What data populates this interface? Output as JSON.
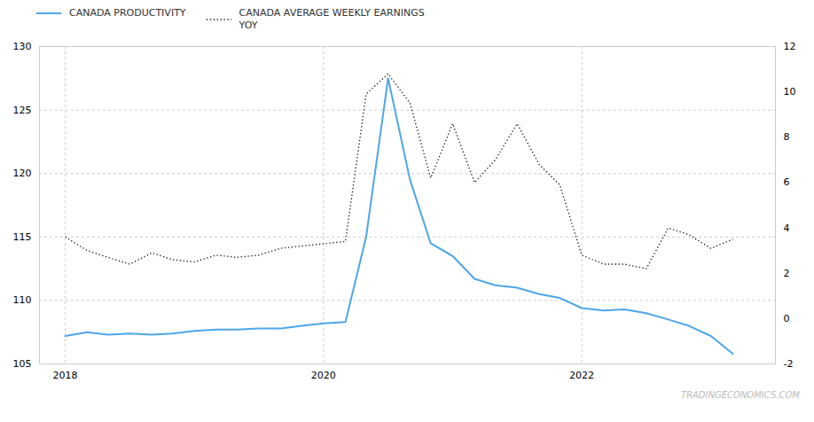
{
  "chart_data": {
    "type": "line",
    "x": [
      2018.0,
      2018.17,
      2018.33,
      2018.5,
      2018.67,
      2018.83,
      2019.0,
      2019.17,
      2019.33,
      2019.5,
      2019.67,
      2019.83,
      2020.0,
      2020.17,
      2020.33,
      2020.5,
      2020.67,
      2020.83,
      2021.0,
      2021.17,
      2021.33,
      2021.5,
      2021.67,
      2021.83,
      2022.0,
      2022.17,
      2022.33,
      2022.5,
      2022.67,
      2022.83,
      2023.0,
      2023.17
    ],
    "xlim": [
      2017.8,
      2023.5
    ],
    "xticks": [
      2018,
      2020,
      2022
    ],
    "ylim": [
      105,
      130
    ],
    "yticks": [
      105,
      110,
      115,
      120,
      125,
      130
    ],
    "y2lim": [
      -2,
      12
    ],
    "y2ticks": [
      -2,
      0,
      2,
      4,
      6,
      8,
      10,
      12
    ],
    "grid": true,
    "legend": "upper left",
    "annotations": [
      "TRADINGECONOMICS.COM"
    ],
    "series": [
      {
        "name": "CANADA PRODUCTIVITY",
        "color": "#4da6e8",
        "line_style": "solid",
        "values": [
          107.2,
          107.5,
          107.3,
          107.4,
          107.3,
          107.4,
          107.6,
          107.7,
          107.7,
          107.8,
          107.8,
          108.0,
          108.2,
          108.3,
          115.0,
          127.5,
          119.5,
          114.5,
          113.5,
          111.7,
          111.2,
          111.0,
          110.5,
          110.2,
          109.4,
          109.2,
          109.3,
          109.0,
          108.5,
          108.0,
          107.2,
          105.8
        ]
      },
      {
        "name": "CANADA AVERAGE WEEKLY EARNINGS\nYOY",
        "color": "#111111",
        "line_style": "dotted",
        "axis": "y2",
        "values": [
          3.6,
          3.0,
          2.7,
          2.4,
          2.9,
          2.6,
          2.5,
          2.8,
          2.7,
          2.8,
          3.1,
          3.2,
          3.3,
          3.4,
          9.9,
          10.8,
          9.5,
          6.2,
          8.6,
          6.0,
          7.0,
          8.6,
          6.8,
          5.9,
          2.8,
          2.4,
          2.4,
          2.2,
          4.0,
          3.7,
          3.1,
          3.5
        ]
      }
    ]
  }
}
